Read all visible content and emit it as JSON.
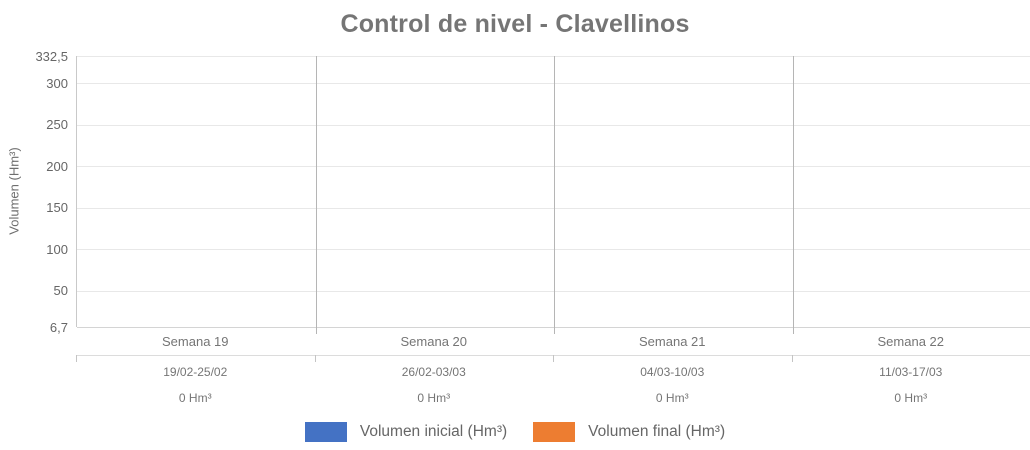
{
  "title": "Control de nivel - Clavellinos",
  "y_axis": {
    "label": "Volumen (Hm³)",
    "ticks": [
      "332,5",
      "300",
      "250",
      "200",
      "150",
      "100",
      "50",
      "6,7"
    ],
    "tick_values": [
      332.5,
      300,
      250,
      200,
      150,
      100,
      50,
      6.7
    ],
    "min": 6.7,
    "max": 332.5
  },
  "x_axis": {
    "weeks": [
      "Semana 19",
      "Semana 20",
      "Semana 21",
      "Semana 22"
    ],
    "dates": [
      "19/02-25/02",
      "26/02-03/03",
      "04/03-10/03",
      "11/03-17/03"
    ],
    "volumes": [
      "0 Hm³",
      "0 Hm³",
      "0 Hm³",
      "0 Hm³"
    ]
  },
  "legend": {
    "items": [
      {
        "label": "Volumen inicial (Hm³)",
        "color": "#4472C4"
      },
      {
        "label": "Volumen final (Hm³)",
        "color": "#ED7D31"
      }
    ]
  },
  "chart_data": {
    "type": "bar",
    "title": "Control de nivel - Clavellinos",
    "categories": [
      "Semana 19",
      "Semana 20",
      "Semana 21",
      "Semana 22"
    ],
    "category_dates": [
      "19/02-25/02",
      "26/02-03/03",
      "04/03-10/03",
      "11/03-17/03"
    ],
    "category_value_labels": [
      "0 Hm³",
      "0 Hm³",
      "0 Hm³",
      "0 Hm³"
    ],
    "series": [
      {
        "name": "Volumen inicial (Hm³)",
        "color": "#4472C4",
        "values": [
          0,
          0,
          0,
          0
        ]
      },
      {
        "name": "Volumen final (Hm³)",
        "color": "#ED7D31",
        "values": [
          0,
          0,
          0,
          0
        ]
      }
    ],
    "xlabel": "",
    "ylabel": "Volumen (Hm³)",
    "ylim": [
      6.7,
      332.5
    ],
    "y_ticks": [
      6.7,
      50,
      100,
      150,
      200,
      250,
      300,
      332.5
    ],
    "grid": true,
    "legend_position": "bottom"
  }
}
